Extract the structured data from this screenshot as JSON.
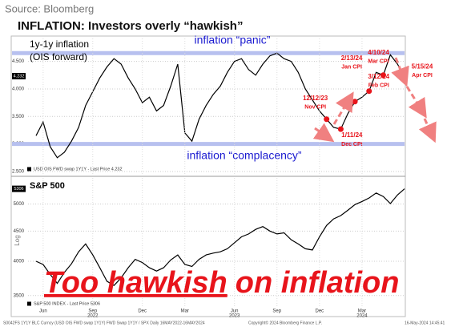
{
  "source": "Source: Bloomberg",
  "title": "INFLATION: Investors overly “hawkish”",
  "chart_data": [
    {
      "type": "line",
      "title": "1y-1y inflation",
      "subtitle": "(OIS forward)",
      "series": [
        {
          "name": "USD OIS FWD swap 1Y1Y - Last Price 4.232",
          "color": "#000000",
          "values": [
            3.15,
            3.4,
            2.95,
            2.75,
            2.85,
            3.05,
            3.3,
            3.7,
            3.95,
            4.2,
            4.4,
            4.55,
            4.45,
            4.2,
            4.0,
            3.75,
            3.85,
            3.6,
            3.7,
            4.05,
            4.45,
            3.2,
            3.05,
            3.45,
            3.7,
            3.9,
            4.05,
            4.3,
            4.5,
            4.55,
            4.35,
            4.25,
            4.45,
            4.6,
            4.65,
            4.55,
            4.5,
            4.3,
            4.0,
            3.8,
            3.6,
            3.45,
            3.3,
            3.27,
            3.55,
            3.77,
            3.85,
            3.96,
            4.3,
            4.25,
            4.62,
            4.45,
            4.232
          ]
        }
      ],
      "ylim": [
        2.5,
        4.8
      ],
      "yticks": [
        {
          "value": 2.5,
          "label": "2.500"
        },
        {
          "value": 3.0,
          "label": "3.000"
        },
        {
          "value": 3.5,
          "label": "3.500"
        },
        {
          "value": 4.0,
          "label": "4.000"
        },
        {
          "value": 4.5,
          "label": "4.500"
        }
      ],
      "last_price": {
        "value": 4.232,
        "label": "4.232"
      },
      "grid": true,
      "bands": [
        {
          "label": "inflation “panic”",
          "value": 4.65,
          "color": "#b7c0ef"
        },
        {
          "label": "inflation “complacency”",
          "value": 3.0,
          "color": "#b7c0ef"
        }
      ],
      "events": [
        {
          "date": "12/12/23",
          "label": "Nov CPI",
          "value": 3.45,
          "color": "#e8141b"
        },
        {
          "date": "1/11/24",
          "label": "Dec CPI",
          "value": 3.27,
          "color": "#e8141b"
        },
        {
          "date": "2/13/24",
          "label": "Jan CPI",
          "value": 3.77,
          "color": "#e8141b"
        },
        {
          "date": "3/12/24",
          "label": "Feb CPI",
          "value": 3.96,
          "color": "#e8141b"
        },
        {
          "date": "4/10/24",
          "label": "Mar CPI",
          "value": 4.25,
          "color": "#e8141b"
        },
        {
          "date": "5/15/24",
          "label": "Apr CPI",
          "value": 4.23,
          "color": "#e8141b"
        }
      ]
    },
    {
      "type": "line",
      "title": "S&P 500",
      "axis_label": "Log",
      "log_scale": true,
      "categories": [
        null,
        "Jun",
        null,
        null,
        null,
        null,
        null,
        null,
        "Sep",
        null,
        null,
        null,
        null,
        null,
        null,
        "Dec",
        null,
        null,
        null,
        null,
        null,
        "Mar",
        null,
        null,
        null,
        null,
        null,
        null,
        "Jun",
        null,
        null,
        null,
        null,
        null,
        "Sep",
        null,
        null,
        null,
        null,
        null,
        "Dec",
        null,
        null,
        null,
        null,
        null,
        "Mar",
        null,
        null,
        null,
        null,
        null,
        null
      ],
      "year_labels": [
        null,
        null,
        null,
        null,
        null,
        null,
        null,
        null,
        "2022",
        null,
        null,
        null,
        null,
        null,
        null,
        null,
        null,
        null,
        null,
        null,
        null,
        null,
        null,
        null,
        null,
        null,
        null,
        null,
        "2023",
        null,
        null,
        null,
        null,
        null,
        null,
        null,
        null,
        null,
        null,
        null,
        null,
        null,
        null,
        null,
        null,
        null,
        "2024",
        null,
        null,
        null,
        null,
        null,
        null
      ],
      "series": [
        {
          "name": "S&P 500 INDEX - Last Price 5306",
          "color": "#000000",
          "values": [
            4000,
            3950,
            3800,
            3670,
            3830,
            3960,
            4150,
            4280,
            4100,
            3900,
            3700,
            3640,
            3750,
            3900,
            4030,
            3980,
            3900,
            3850,
            3900,
            4020,
            4100,
            3950,
            3920,
            4030,
            4100,
            4130,
            4150,
            4200,
            4300,
            4400,
            4450,
            4530,
            4580,
            4500,
            4450,
            4470,
            4350,
            4280,
            4200,
            4180,
            4400,
            4600,
            4720,
            4780,
            4880,
            4990,
            5050,
            5120,
            5220,
            5150,
            5010,
            5180,
            5306
          ]
        }
      ],
      "ylim": [
        3400,
        5400
      ],
      "yticks": [
        3500,
        4000,
        4500,
        5000
      ],
      "last_price": {
        "value": 5306,
        "label": "5306"
      },
      "grid": true
    }
  ],
  "callout": {
    "emphasis": "Too hawkish",
    "rest": "on inflation"
  },
  "footer": {
    "left": "S0042FS 1Y1Y BLC Curncy (USD OIS FWD swap 1Y1Y) FWD Swap 1Y1Y / SPX Daily 16MAY2022-16MAY2024",
    "center": "Copyright© 2024 Bloomberg Finance L.P.",
    "right": "16-May-2024 14:45:41"
  }
}
